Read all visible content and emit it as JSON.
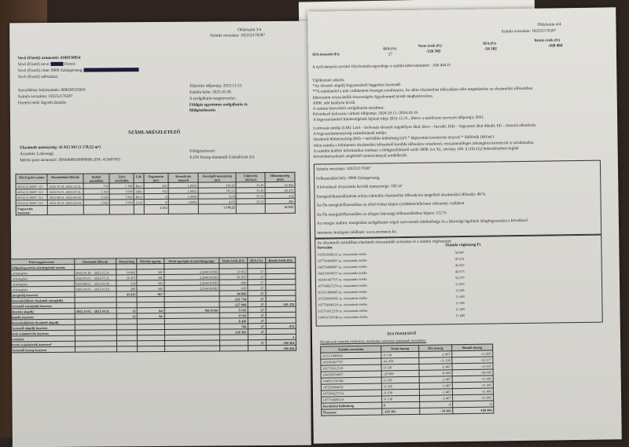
{
  "left_page": {
    "page_number": "Oldalszám 3/4",
    "invoice_number_header": "Számla sorszáma: 102252176587",
    "customer_id": "Vevő (Fizető) azonosító: 4100158954",
    "customer_name": "Vevő (Fizető) neve:",
    "customer_name_suffix": "Ferenc",
    "customer_address": "Vevő (Fizető) címe: 8900 Zalaegerszeg,",
    "customer_tax": "Vevő (Fizető) adószáma:",
    "contract_account": "Szerződéses folyószámla: 000030525916",
    "invoice_number": "Számla sorszáma: 102252176587",
    "payment_method": "Fizetési mód: Egyedi átutalás",
    "fulfillment_date": "Teljesítés időpontja: 2023.11.13.",
    "issue_date": "Számla kelte: 2023.10.30.",
    "service_label": "A szolgáltatás megnevezése:",
    "service_name": "Földgáz egyetemes szolgáltatás és földgázelosztás",
    "section_title": "SZÁMLARÉSZLETEZŐ",
    "billed_quantity": "Elszámolt mennyiség: 41 815 MJ (1 178,22 m³)",
    "tariff": "Árszabás: Lakossági",
    "meter_point": "Mérési pont azonosító: 39N040001080000K (FH: 41349783)",
    "distributor_label": "Földgázelosztó:",
    "distributor_name": "E.ON Közép-dunántúli Gázhálózati Zrt.",
    "meter_table": {
      "headers": [
        "Mérő gyári száma",
        "Elszámolási időszak",
        "Induló mérőállás",
        "Záró mérőállás",
        "LM",
        "Fogyasztás (m³)",
        "Korrekciós tényező",
        "Korrigált mennyiség (m³)",
        "Fűtőérték (MJ/m³)",
        "Hőmennyiség (MJ)"
      ],
      "rows": [
        [
          "005412130097-313",
          "2022.10.18.-2022.12.31.",
          "778",
          "1 194",
          "Becs",
          "416",
          "1,0035",
          "418,20",
          "35,49",
          "14 842"
        ],
        [
          "005412130097-313",
          "2023.01.01.-2023.07.31.",
          "1 194",
          "1 936",
          "Dikt",
          "742",
          "1,0053",
          "745,93",
          "35,49",
          "26 473"
        ],
        [
          "005412130097-313",
          "2023.08.01.-2023.09.30.",
          "1 936",
          "1 942",
          "Becs",
          "6",
          "1,0059",
          "6,04",
          "35,52",
          "214"
        ],
        [
          "005412130097-313",
          "2023.10.01.-2023.10.19.",
          "1 942",
          "1 950",
          "Leol",
          "8",
          "1,0059",
          "8,05",
          "35,52",
          "286"
        ],
        [
          "Fogyasztás összesen:",
          "",
          "",
          "",
          "",
          "1 172",
          "",
          "1 178,22",
          "",
          "41 815"
        ]
      ]
    },
    "items_table": {
      "headers": [
        "Tétel megnevezése",
        "Elszámolt időszak",
        "Mennyiség",
        "Mérték-egység",
        "Nettó egységár és mértékegysége",
        "Nettó érték (Ft)",
        "ÁFA (%)",
        "Bruttó érték (Ft)"
      ],
      "rows": [
        [
          "Földgázfogyasztás árkategóriák szerint",
          "",
          "",
          "",
          "",
          "",
          "",
          ""
        ],
        [
          "I. árkategória",
          "2022.10.18. - 2022.12.31.",
          "14 842",
          "MJ",
          "2,2640 Ft/MJ",
          "33 602",
          "27",
          ""
        ],
        [
          "I. árkategória",
          "2023.01.01. - 2023.07.31.",
          "26 473",
          "MJ",
          "2,2640 Ft/MJ",
          "59 935",
          "27",
          ""
        ],
        [
          "I. árkategória",
          "2023.08.01. - 2023.09.30.",
          "214",
          "MJ",
          "2,2640 Ft/MJ",
          "484",
          "27",
          ""
        ],
        [
          "I. árkategória",
          "2023.10.01. - 2023.10.19.",
          "286",
          "MJ",
          "2,2560 Ft/MJ",
          "645",
          "27",
          ""
        ],
        [
          "Energiadíj összesen",
          "",
          "41 815",
          "MJ",
          "",
          "94 666",
          "27",
          ""
        ],
        [
          "Részszámlákban elszámolt energiadíj",
          "",
          "",
          "",
          "",
          "-221 734",
          "27",
          ""
        ],
        [
          "Fizetendő energiadíj összesen",
          "",
          "",
          "",
          "",
          "-127 068",
          "27",
          "-161 376"
        ],
        [
          "Elosztási alapdíj",
          "2022.11.01. - 2023.10.31.",
          "12",
          "hó",
          "766 Ft/hó",
          "9 192",
          "27",
          ""
        ],
        [
          "Alapdíj összesen",
          "",
          "12",
          "hó",
          "",
          "9 192",
          "27",
          ""
        ],
        [
          "Részszámlákban elszámolt alapdíj",
          "",
          "",
          "",
          "",
          "-8 426",
          "27",
          ""
        ],
        [
          "Fizetendő alapdíj összesen",
          "",
          "",
          "",
          "",
          "766",
          "27",
          "973"
        ],
        [
          "Nettó számlaérték összesen",
          "",
          "",
          "",
          "",
          "-126 302",
          "27",
          ""
        ],
        [
          "Kerekítés",
          "",
          "",
          "",
          "",
          "",
          "",
          "-1"
        ],
        [
          "Bruttó számlaérték összesen*",
          "",
          "",
          "",
          "",
          "",
          "27",
          "-160 404"
        ],
        [
          "Fizetendő összeg összesen",
          "",
          "",
          "",
          "",
          "",
          "",
          "-160 404"
        ]
      ]
    }
  },
  "right_page": {
    "page_number": "Oldalszám 4/4",
    "invoice_number_header": "Számla sorszáma: 102252176587",
    "vat_summary": {
      "label": "ÁFA összesítő (Ft)",
      "vat_pct_h": "ÁFA (%)",
      "vat_pct": "27",
      "net_h": "Nettó érték (Ft)",
      "net": "-126 302",
      "vat_h": "ÁFA (Ft)",
      "vat": "-34 102",
      "gross_h": "Bruttó érték (Ft)",
      "gross": "-160 404"
    },
    "balance": "A nyilvántartás szerinti folyószámla-egyenlege a számla kibocsátásakor: -160 404 Ft",
    "info_lines": [
      "Tájékoztató adatok:",
      "*Az elosztói alapdíj fogyasztástól független fizetendő.",
      "**A számlatétel a már csökkentett összeget tartalmazza. Az adott elszámolási időszakban elért megtakarítás az elszámolási időszakban",
      "kibocsátott részszámlák összességére figyelemmel került meghatározásra.",
      "AHK: adó hatályán kívüli",
      "A számla közvetített szolgáltatást tartalmaz.",
      "Következő leolvasás várható időpontja: 2024.10.13.-2024.10.19.",
      "A fogyasztásmérő hitelességének lejárati ideje 2031.12.31., illetve a mérőcsere tervezett időpontja: 2031."
    ],
    "reading_lines": [
      "Leolvasás módja (LM): Leol – leolvasás elosztói engedélyes által; Becs – becsült; Dikt – fogyasztó által diktált; Ell – elosztói ellenőrzés",
      "A fogyasztásmennyiség számításának módja:",
      "elszámolt hőmennyiség (MJ) = mérőállás különbség (m³) * légnyomás korrekciós tényező * fűtőérték (MJ/m³)",
      "Jelen számla a feltüntetett elszámolási időszakról korábbi időszakra vonatkozó, visszamenőleges árkategória korrekciót is tartalmazhat.",
      "A számlát kiállító informatikai rendszer a földgázellátásról szóló 2008. évi XL. törvény 100. § (1b)-(1j) bekezdéseiben foglalt",
      "követelményeknek megfelelő tanúsítvánnyal rendelkezik."
    ],
    "box_lines": [
      "Számla sorszáma: 102252176587",
      "Felhasználási hely: 8900 Zalaegerszeg,",
      "A következő részszámla becsült mennyisége: 102 m³",
      "Energiafelhasználásának aránya (aktuális elszámolási időszak/azt megelőző elszámolási időszak): 48 %",
      "Az Ön energiafelhasználása az előző évhez képest (csökkent/nőtt/nem változott): csökkent",
      "Az Ön energiafelhasználása az átlagos lakossági felhasználáshoz képest: 112 %",
      "Az energia auditot, energetikai szolgáltatást végző szervezetek elérhetősége és a lakossági ügyfelek átlagfogyasztása a következő",
      "internetes honlapon található: www.mvmnext.hu"
    ],
    "partials": {
      "title": "Az elszámoló számlában elszámolt részszámlák sorszáma és a számla végösszege:",
      "col1": "Sorszám",
      "col2": "Számla végösszeg Ft",
      "rows": [
        [
          "102501088212 sz. részszámla értéke",
          "38 997"
        ],
        [
          "107750466093 sz. részszámla értéke",
          "45 672"
        ],
        [
          "108750408987 sz. részszámla értéke",
          "42 653"
        ],
        [
          "104250950057 sz. részszámla értéke",
          "42 673"
        ],
        [
          "102001607707 sz. részszámla értéke",
          "52 677"
        ],
        [
          "107500627274 sz. részszámla értéke",
          "11 605"
        ],
        [
          "101511890843 sz. részszámla értéke",
          "11 605"
        ],
        [
          "107250684592 sz. részszámla értéke",
          "11 605"
        ],
        [
          "107750686519 sz. részszámla értéke",
          "11 605"
        ],
        [
          "102751812319 sz. részszámla értéke",
          "11 605"
        ],
        [
          "104501356748 sz. részszámla értéke",
          "11 605"
        ]
      ]
    },
    "afa_summary": {
      "title": "ÁFA ÖSSZESÍTŐ",
      "subtitle": "Hivatkozott számlák módosítás, módosítás sztornózó hatásának levezetése:",
      "headers": [
        "Számla sorszáma",
        "Nettó összeg",
        "Áfa összeg",
        "Bruttó összeg"
      ],
      "rows": [
        [
          "101511890843",
          "-9 138",
          "-2 467",
          "-11 605"
        ],
        [
          "102001607707",
          "-41 478",
          "-11 199",
          "-52 677"
        ],
        [
          "102751812319",
          "-9 138",
          "-2 467",
          "-11 605"
        ],
        [
          "104250950057",
          "-29 996",
          "-8 099",
          "-38 095"
        ],
        [
          "104501356748",
          "-9 138",
          "-2 467",
          "-11 605"
        ],
        [
          "107250684592",
          "-9 138",
          "-2 467",
          "-11 605"
        ],
        [
          "107500627274",
          "-9 138",
          "-2 467",
          "-11 605"
        ],
        [
          "107750686519",
          "-9 138",
          "-2 467",
          "-11 605"
        ],
        [
          "Kerekítési különbség",
          "0",
          "-2",
          "-2"
        ],
        [
          "Összesen",
          "-126 302",
          "-34 102",
          "-160 404"
        ]
      ]
    }
  }
}
